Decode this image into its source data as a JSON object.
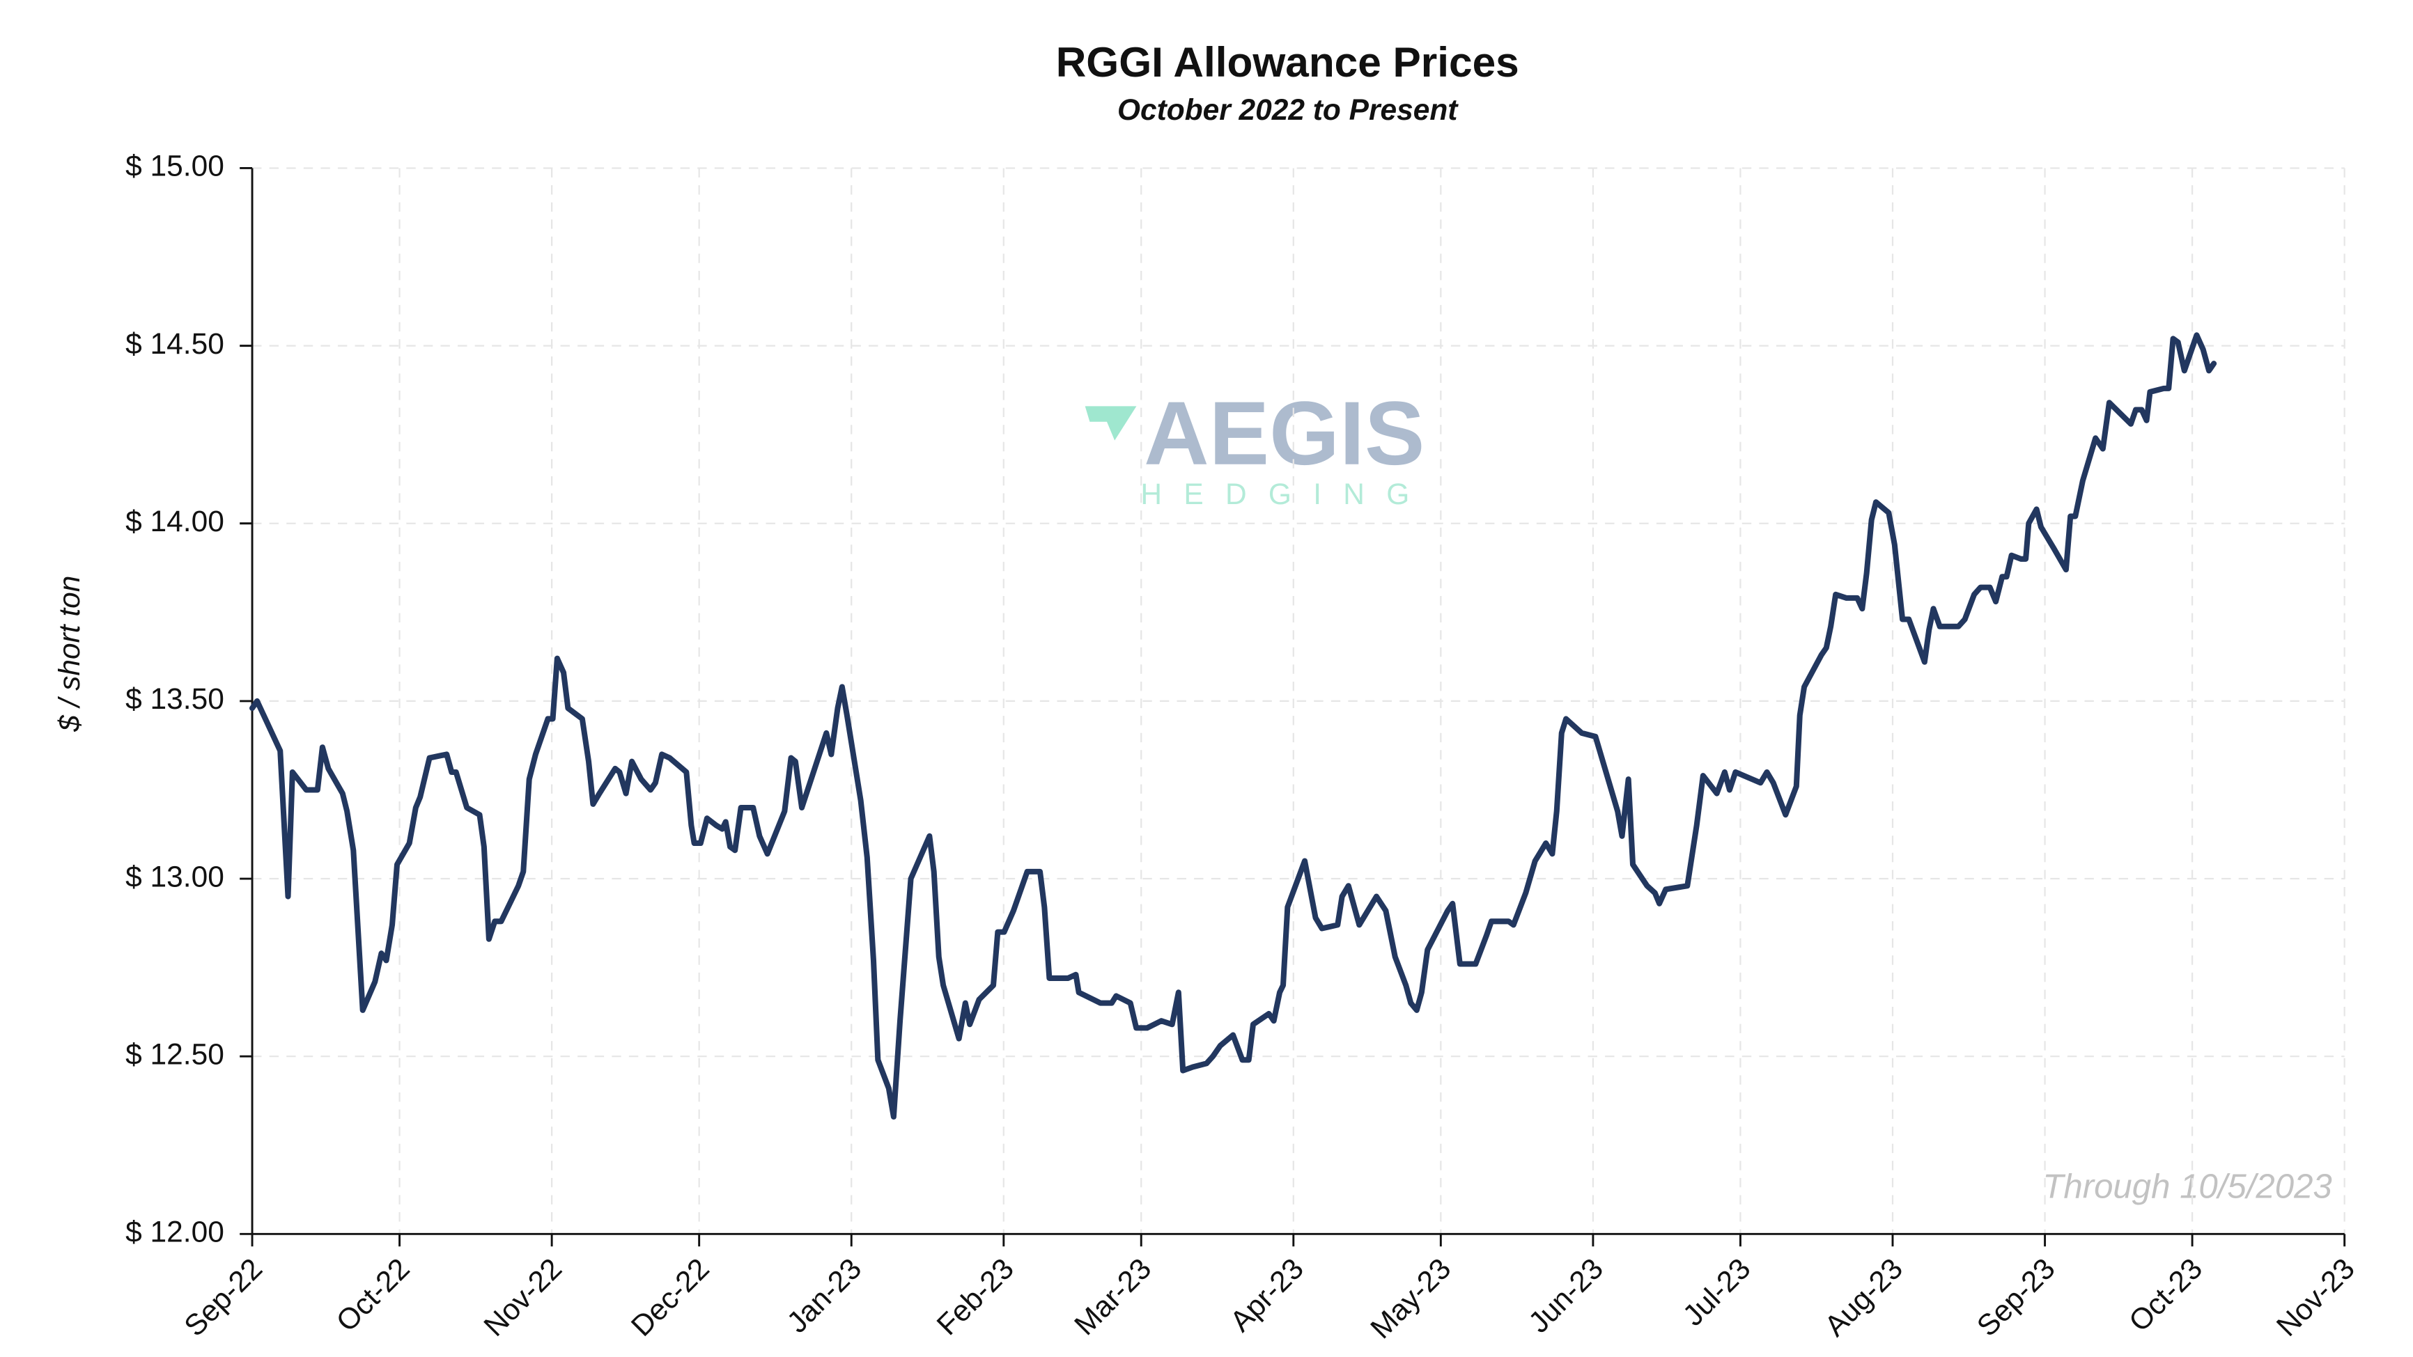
{
  "chart_data": {
    "type": "line",
    "title": "RGGI Allowance Prices",
    "subtitle": "October 2022 to Present",
    "y_label": "$ / short ton",
    "annotation": "Through 10/5/2023",
    "watermark": {
      "name": "AEGIS",
      "tagline": "HEDGING"
    },
    "grid": true,
    "xlim": [
      0,
      426
    ],
    "xticks": [
      {
        "value": 0,
        "label": "Sep-22"
      },
      {
        "value": 30,
        "label": "Oct-22"
      },
      {
        "value": 61,
        "label": "Nov-22"
      },
      {
        "value": 91,
        "label": "Dec-22"
      },
      {
        "value": 122,
        "label": "Jan-23"
      },
      {
        "value": 153,
        "label": "Feb-23"
      },
      {
        "value": 181,
        "label": "Mar-23"
      },
      {
        "value": 212,
        "label": "Apr-23"
      },
      {
        "value": 242,
        "label": "May-23"
      },
      {
        "value": 273,
        "label": "Jun-23"
      },
      {
        "value": 303,
        "label": "Jul-23"
      },
      {
        "value": 334,
        "label": "Aug-23"
      },
      {
        "value": 365,
        "label": "Sep-23"
      },
      {
        "value": 395,
        "label": "Oct-23"
      },
      {
        "value": 426,
        "label": "Nov-23"
      }
    ],
    "ylim": [
      12,
      15
    ],
    "yticks": [
      {
        "value": 12,
        "label": "$ 12.00"
      },
      {
        "value": 12.5,
        "label": "$ 12.50"
      },
      {
        "value": 13,
        "label": "$ 13.00"
      },
      {
        "value": 13.5,
        "label": "$ 13.50"
      },
      {
        "value": 14,
        "label": "$ 14.00"
      },
      {
        "value": 14.5,
        "label": "$ 14.50"
      },
      {
        "value": 15,
        "label": "$ 15.00"
      }
    ],
    "x": [
      0,
      1,
      5.7,
      7.3,
      8.2,
      11,
      13.3,
      14.3,
      15.5,
      18.4,
      19.3,
      20.6,
      22.5,
      25,
      26.3,
      27.3,
      28.5,
      29.5,
      32,
      33.3,
      34.2,
      36.1,
      39.6,
      40.6,
      41.5,
      43.7,
      46.3,
      47.2,
      48.2,
      49.4,
      50.7,
      54.2,
      55.2,
      56.4,
      57.7,
      60.2,
      61.2,
      62.1,
      63.4,
      64.3,
      67.2,
      68.5,
      69.4,
      70.7,
      73.9,
      74.8,
      76.1,
      77.3,
      79.2,
      81.1,
      82.1,
      83.4,
      85,
      88.4,
      89.4,
      90,
      91.3,
      92.6,
      94.5,
      95.7,
      96.4,
      97.3,
      98.3,
      99.5,
      102,
      103.3,
      104.9,
      108.4,
      109.7,
      110.6,
      111.9,
      116.9,
      117.9,
      119.2,
      120.1,
      121.1,
      123.9,
      125.2,
      126.5,
      127.4,
      129.6,
      130.6,
      131.9,
      134.1,
      137.9,
      138.8,
      139.8,
      140.7,
      143.9,
      145.2,
      146.1,
      148,
      150.9,
      151.8,
      153.1,
      155,
      157.8,
      160.4,
      161.3,
      162.3,
      166.1,
      167.7,
      168.3,
      172.7,
      175,
      175.9,
      178.8,
      180,
      182.2,
      185.1,
      187.3,
      188.6,
      189.5,
      191.5,
      194.3,
      195.6,
      197.1,
      199.7,
      201.6,
      202.9,
      203.8,
      207,
      208,
      209.2,
      209.9,
      210.8,
      214.3,
      216.5,
      217.8,
      221,
      221.9,
      223.2,
      225.4,
      228.9,
      230.8,
      232.7,
      234.9,
      235.9,
      237.1,
      238.1,
      239.3,
      243.4,
      244.4,
      245.9,
      249.1,
      251.3,
      252.3,
      255.8,
      256.8,
      259.3,
      261.2,
      263.4,
      264.7,
      265.6,
      266.6,
      267.5,
      270.7,
      273.5,
      278,
      278.9,
      280.2,
      281.1,
      284,
      285.6,
      286.5,
      287.8,
      292.2,
      294.1,
      295.4,
      298.2,
      299.8,
      300.8,
      302,
      307.1,
      308.4,
      309.7,
      312.2,
      314.4,
      315.1,
      316,
      319.5,
      320.5,
      321.4,
      322.4,
      324.6,
      326.8,
      327.8,
      328.7,
      329.7,
      330.6,
      333.2,
      334.4,
      336,
      337.3,
      340.5,
      341.4,
      342.3,
      343.6,
      347.4,
      348.7,
      350.6,
      351.9,
      353.8,
      355,
      356.3,
      357.2,
      358.2,
      360.1,
      361.1,
      361.7,
      363.3,
      364.2,
      366.8,
      369.3,
      370.2,
      371.2,
      372.7,
      375.3,
      376.8,
      378.1,
      382.5,
      383.5,
      384.7,
      385.7,
      386.4,
      389.2,
      390.2,
      391.1,
      392.1,
      393.4,
      395.9,
      397.2,
      398.4,
      399.4
    ],
    "series": [
      {
        "name": "RGGI Allowance Price",
        "color": "#22375f",
        "values": [
          13.48,
          13.5,
          13.36,
          12.95,
          13.3,
          13.25,
          13.25,
          13.37,
          13.31,
          13.24,
          13.19,
          13.08,
          12.63,
          12.71,
          12.79,
          12.77,
          12.87,
          13.04,
          13.1,
          13.2,
          13.23,
          13.34,
          13.35,
          13.3,
          13.3,
          13.2,
          13.18,
          13.09,
          12.83,
          12.88,
          12.88,
          12.98,
          13.02,
          13.28,
          13.35,
          13.45,
          13.45,
          13.62,
          13.58,
          13.48,
          13.45,
          13.33,
          13.21,
          13.24,
          13.31,
          13.3,
          13.24,
          13.33,
          13.28,
          13.25,
          13.27,
          13.35,
          13.34,
          13.3,
          13.15,
          13.1,
          13.1,
          13.17,
          13.15,
          13.14,
          13.16,
          13.09,
          13.08,
          13.2,
          13.2,
          13.12,
          13.07,
          13.19,
          13.34,
          13.33,
          13.2,
          13.41,
          13.35,
          13.48,
          13.54,
          13.46,
          13.22,
          13.06,
          12.77,
          12.49,
          12.41,
          12.33,
          12.6,
          13,
          13.12,
          13.02,
          12.78,
          12.7,
          12.55,
          12.65,
          12.59,
          12.66,
          12.7,
          12.85,
          12.85,
          12.91,
          13.02,
          13.02,
          12.92,
          12.72,
          12.72,
          12.73,
          12.68,
          12.65,
          12.65,
          12.67,
          12.65,
          12.58,
          12.58,
          12.6,
          12.59,
          12.68,
          12.46,
          12.47,
          12.48,
          12.5,
          12.53,
          12.56,
          12.49,
          12.49,
          12.59,
          12.62,
          12.6,
          12.68,
          12.7,
          12.92,
          13.05,
          12.89,
          12.86,
          12.87,
          12.95,
          12.98,
          12.87,
          12.95,
          12.91,
          12.78,
          12.7,
          12.65,
          12.63,
          12.68,
          12.8,
          12.91,
          12.93,
          12.76,
          12.76,
          12.84,
          12.88,
          12.88,
          12.87,
          12.96,
          13.05,
          13.1,
          13.07,
          13.19,
          13.41,
          13.45,
          13.41,
          13.4,
          13.19,
          13.12,
          13.28,
          13.04,
          12.98,
          12.96,
          12.93,
          12.97,
          12.98,
          13.15,
          13.29,
          13.24,
          13.3,
          13.25,
          13.3,
          13.27,
          13.3,
          13.27,
          13.18,
          13.26,
          13.46,
          13.54,
          13.63,
          13.65,
          13.71,
          13.8,
          13.79,
          13.79,
          13.76,
          13.86,
          14.01,
          14.06,
          14.03,
          13.94,
          13.73,
          13.73,
          13.61,
          13.7,
          13.76,
          13.71,
          13.71,
          13.73,
          13.8,
          13.82,
          13.82,
          13.78,
          13.85,
          13.85,
          13.91,
          13.9,
          13.9,
          14,
          14.04,
          13.99,
          13.93,
          13.87,
          14.02,
          14.02,
          14.12,
          14.24,
          14.21,
          14.34,
          14.28,
          14.32,
          14.32,
          14.29,
          14.37,
          14.38,
          14.38,
          14.52,
          14.51,
          14.43,
          14.53,
          14.49,
          14.43,
          14.45
        ]
      }
    ]
  }
}
